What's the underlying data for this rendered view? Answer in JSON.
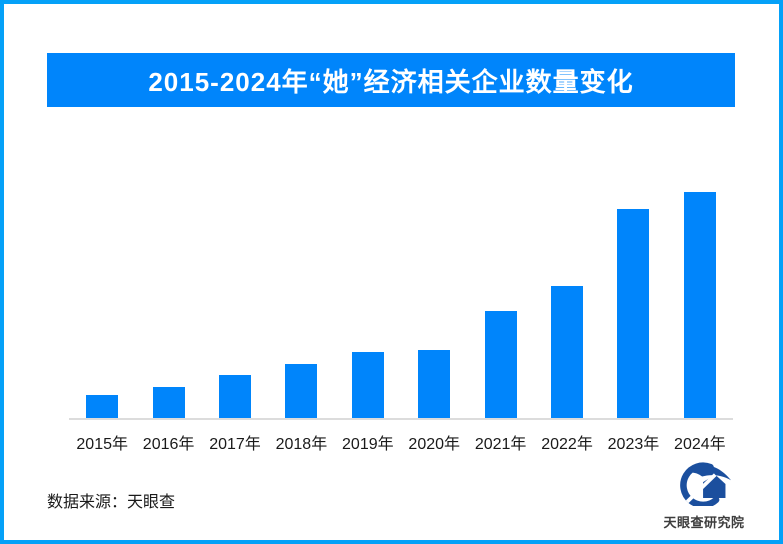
{
  "title_banner": {
    "text": "2015-2024年“她”经济相关企业数量变化"
  },
  "chart_data": {
    "type": "bar",
    "title": "2015-2024年“她”经济相关企业数量变化",
    "categories": [
      "2015年",
      "2016年",
      "2017年",
      "2018年",
      "2019年",
      "2020年",
      "2021年",
      "2022年",
      "2023年",
      "2024年"
    ],
    "values": [
      10.2,
      13.7,
      19.0,
      23.9,
      29.2,
      30.1,
      47.3,
      58.4,
      92.5,
      100
    ],
    "values_note": "no numeric labels or y-axis shown in image; values are relative bar heights with 2024 = 100",
    "xlabel": "",
    "ylabel": "",
    "ylim": [
      0,
      100
    ],
    "grid": false,
    "legend": false,
    "bar_color": "#0085fb"
  },
  "footer": {
    "source_label": "数据来源：天眼查"
  },
  "logo": {
    "text": "天眼查研究院",
    "mark": "tianyancha-eye-logo"
  },
  "colors": {
    "accent_blue": "#0085fb",
    "frame_border_blue": "#04a1f8",
    "axis_line": "#dcdcdc",
    "text_dark": "#1a1a1a",
    "logo_navy": "#1b4f9e",
    "banner_text": "#ffffff"
  }
}
